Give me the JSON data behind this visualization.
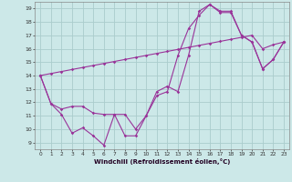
{
  "xlabel": "Windchill (Refroidissement éolien,°C)",
  "background_color": "#cce8e8",
  "grid_color": "#aacccc",
  "line_color": "#993399",
  "xlim": [
    -0.5,
    23.5
  ],
  "ylim": [
    8.5,
    19.5
  ],
  "xticks": [
    0,
    1,
    2,
    3,
    4,
    5,
    6,
    7,
    8,
    9,
    10,
    11,
    12,
    13,
    14,
    15,
    16,
    17,
    18,
    19,
    20,
    21,
    22,
    23
  ],
  "yticks": [
    9,
    10,
    11,
    12,
    13,
    14,
    15,
    16,
    17,
    18,
    19
  ],
  "series": [
    [
      14.0,
      11.9,
      11.1,
      9.7,
      10.1,
      9.5,
      8.8,
      11.1,
      9.5,
      9.5,
      11.0,
      12.5,
      12.8,
      15.5,
      17.5,
      18.5,
      19.3,
      18.7,
      18.7,
      17.0,
      16.5,
      14.5,
      15.2,
      16.5
    ],
    [
      14.0,
      11.9,
      11.5,
      11.7,
      11.7,
      11.2,
      11.1,
      11.1,
      11.1,
      10.0,
      11.0,
      12.8,
      13.2,
      12.8,
      15.5,
      18.8,
      19.3,
      18.8,
      18.8,
      17.0,
      16.5,
      14.5,
      15.2,
      16.5
    ],
    [
      14.0,
      14.15,
      14.3,
      14.45,
      14.6,
      14.75,
      14.9,
      15.05,
      15.2,
      15.35,
      15.5,
      15.65,
      15.8,
      15.95,
      16.1,
      16.25,
      16.4,
      16.55,
      16.7,
      16.85,
      17.0,
      16.0,
      16.3,
      16.5
    ]
  ]
}
